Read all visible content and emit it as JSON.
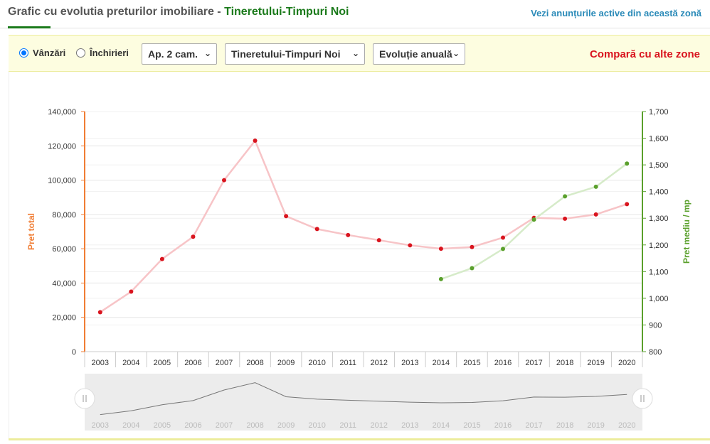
{
  "header": {
    "title_prefix": "Grafic cu evolutia preturilor imobiliare - ",
    "title_zone": "Tineretului-Timpuri Noi",
    "active_listings_link": "Vezi anunțurile active din această zonă"
  },
  "filters": {
    "radio_sales": "Vânzări",
    "radio_rentals": "Închirieri",
    "selected_radio": "sales",
    "rooms_select": "Ap. 2 cam.",
    "zone_select": "Tineretului-Timpuri Noi",
    "period_select": "Evoluție anuală",
    "compare_link": "Compară cu alte zone"
  },
  "chart_data": {
    "type": "line",
    "title": "",
    "categories": [
      "2003",
      "2004",
      "2005",
      "2006",
      "2007",
      "2008",
      "2009",
      "2010",
      "2011",
      "2012",
      "2013",
      "2014",
      "2015",
      "2016",
      "2017",
      "2018",
      "2019",
      "2020"
    ],
    "ylabel": "Pret total",
    "y2label": "Pret mediu / mp",
    "ylim": [
      0,
      140000
    ],
    "y2lim": [
      800,
      1700
    ],
    "yticks": [
      "0",
      "20,000",
      "40,000",
      "60,000",
      "80,000",
      "100,000",
      "120,000",
      "140,000"
    ],
    "y2ticks": [
      "800",
      "900",
      "1,000",
      "1,100",
      "1,200",
      "1,300",
      "1,400",
      "1,500",
      "1,600",
      "1,700"
    ],
    "grid": true,
    "series": [
      {
        "axis": "left",
        "color": "#d9141e",
        "line_color": "#f7c4c7",
        "values": [
          23000,
          35000,
          54000,
          67000,
          100000,
          123000,
          79000,
          71500,
          68000,
          65000,
          62000,
          60000,
          61000,
          66500,
          78000,
          77500,
          80000,
          86000
        ]
      },
      {
        "axis": "right",
        "color": "#5aa02c",
        "line_color": "#d6ebc9",
        "values": [
          null,
          null,
          null,
          null,
          null,
          null,
          null,
          null,
          null,
          null,
          null,
          1072,
          1113,
          1185,
          1295,
          1382,
          1418,
          1505
        ]
      }
    ],
    "navigator_labels": [
      "2003",
      "2004",
      "2005",
      "2006",
      "2007",
      "2008",
      "2009",
      "2010",
      "2011",
      "2012",
      "2013",
      "2014",
      "2015",
      "2016",
      "2017",
      "2018",
      "2019",
      "2020"
    ]
  },
  "colors": {
    "left_axis": "#f07d34",
    "right_axis": "#5aa02c",
    "zone_title": "#1b7a1b",
    "link": "#2a8ab8",
    "compare": "#d9141e"
  }
}
